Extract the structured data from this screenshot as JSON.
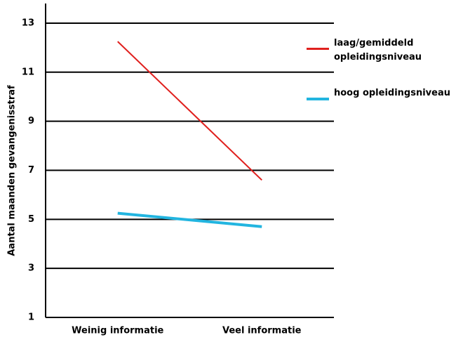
{
  "chart_data": {
    "type": "line",
    "y_label": "Aantal maanden gevangenisstraf",
    "categories": [
      "Weinig informatie",
      "Veel informatie"
    ],
    "series": [
      {
        "name": "laag/gemiddeld opleidingsniveau",
        "color": "#e0201e",
        "values": [
          12.25,
          6.6
        ]
      },
      {
        "name": "hoog opleidingsniveau",
        "color": "#22b5e0",
        "values": [
          5.25,
          4.7
        ]
      }
    ],
    "ylim": [
      1,
      13.8
    ],
    "yticks": [
      1,
      3,
      5,
      7,
      9,
      11,
      13
    ],
    "grid": true
  }
}
